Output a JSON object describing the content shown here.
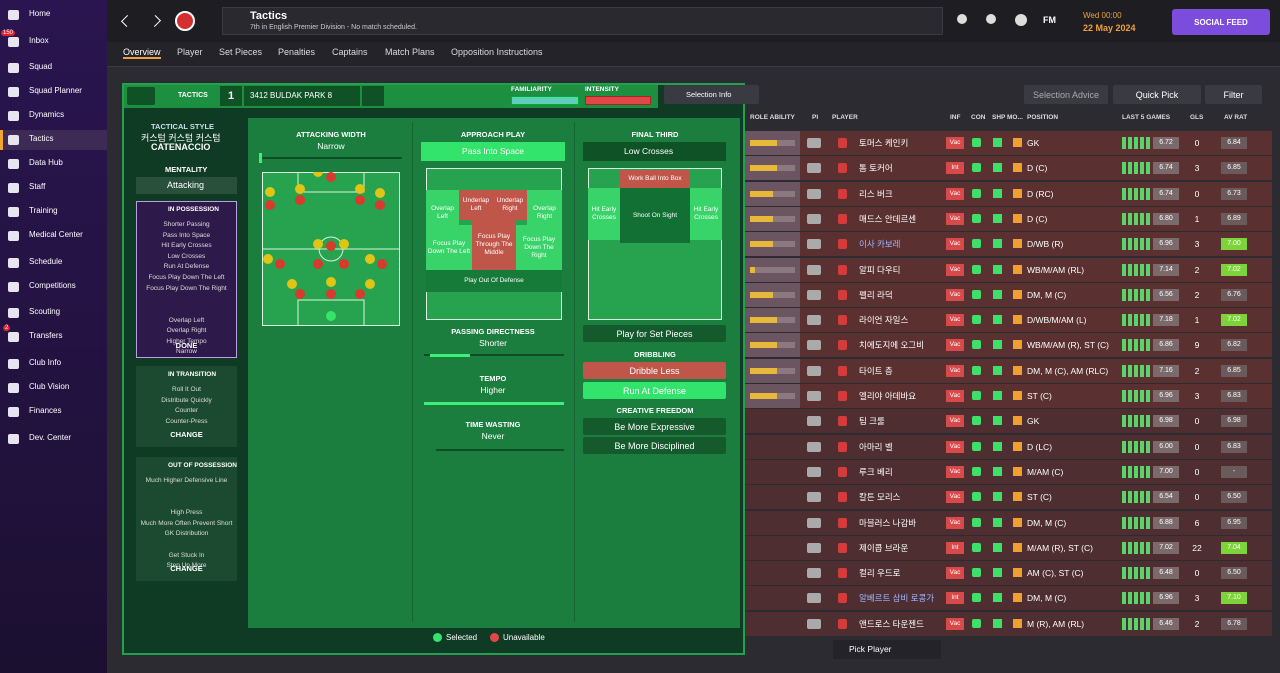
{
  "sidebar": {
    "items": [
      "Home",
      "Inbox",
      "Squad",
      "Squad Planner",
      "Dynamics",
      "Tactics",
      "Data Hub",
      "Staff",
      "Training",
      "Medical Center",
      "Schedule",
      "Competitions",
      "Scouting",
      "Transfers",
      "Club Info",
      "Club Vision",
      "Finances",
      "Dev. Center"
    ],
    "inbox_badge": "150",
    "transfers_badge": "2"
  },
  "header": {
    "title": "Tactics",
    "subtitle": "7th in English Premier Division - No match scheduled.",
    "fm": "FM",
    "day_time": "Wed 00:00",
    "date": "22 May 2024",
    "social_feed": "SOCIAL FEED"
  },
  "tabs": [
    "Overview",
    "Player",
    "Set Pieces",
    "Penalties",
    "Captains",
    "Match Plans",
    "Opposition Instructions"
  ],
  "tactic_bar": {
    "label": "TACTICS",
    "slot": "1",
    "name": "3412 BULDAK PARK 8",
    "familiarity": "FAMILIARITY",
    "intensity": "INTENSITY",
    "selection_info": "Selection Info"
  },
  "style_panel": {
    "heading": "TACTICAL STYLE",
    "custom": "커스텀 커스텀 커스텀",
    "style": "CATENACCIO",
    "mentality_label": "MENTALITY",
    "mentality": "Attacking",
    "in_possession": {
      "title": "IN POSSESSION",
      "items": [
        "Shorter Passing",
        "Pass Into Space",
        "Hit Early Crosses",
        "Low Crosses",
        "Run At Defense",
        "Focus Play Down The Left",
        "Focus Play Down The Right",
        "Overlap Left",
        "Overlap Right",
        "Higher Tempo",
        "Narrow"
      ],
      "button": "DONE"
    },
    "in_transition": {
      "title": "IN TRANSITION",
      "items": [
        "Roll It Out",
        "Distribute Quickly",
        "Counter",
        "Counter-Press"
      ],
      "button": "CHANGE"
    },
    "out_of_possession": {
      "title": "OUT OF POSSESSION",
      "items": [
        "Much Higher Defensive Line",
        "High Press",
        "Much More Often Prevent Short GK Distribution",
        "Get Stuck In",
        "Step Up More"
      ],
      "button": "CHANGE"
    }
  },
  "instructions": {
    "attacking_width": {
      "title": "ATTACKING WIDTH",
      "value": "Narrow"
    },
    "approach_play": {
      "title": "APPROACH PLAY",
      "value": "Pass Into Space",
      "zones": [
        "Overlap Left",
        "Underlap Left",
        "Underlap Right",
        "Overlap Right",
        "Focus Play Down The Left",
        "Focus Play Through The Middle",
        "Focus Play Down The Right",
        "Play Out Of Defense"
      ]
    },
    "passing_directness": {
      "title": "PASSING DIRECTNESS",
      "value": "Shorter"
    },
    "tempo": {
      "title": "TEMPO",
      "value": "Higher"
    },
    "time_wasting": {
      "title": "TIME WASTING",
      "value": "Never"
    },
    "final_third": {
      "title": "FINAL THIRD",
      "value": "Low Crosses",
      "zones": [
        "Work Ball Into Box",
        "Hit Early Crosses",
        "Shoot On Sight",
        "Hit Early Crosses"
      ]
    },
    "set_pieces": "Play for Set Pieces",
    "dribbling": {
      "title": "DRIBBLING",
      "options": [
        "Dribble Less",
        "Run At Defense"
      ]
    },
    "creative_freedom": {
      "title": "CREATIVE FREEDOM",
      "options": [
        "Be More Expressive",
        "Be More Disciplined"
      ]
    }
  },
  "legend": {
    "selected": "Selected",
    "unavailable": "Unavailable"
  },
  "squad": {
    "buttons": [
      "Selection Advice",
      "Quick Pick",
      "Filter"
    ],
    "columns": [
      "ROLE ABILITY",
      "PI",
      "PLAYER",
      "INF",
      "CON",
      "SHP",
      "MO...",
      "POSITION",
      "LAST 5 GAMES",
      "GLS",
      "AV RAT"
    ],
    "rows": [
      {
        "stars": 3,
        "name": "토머스 케인키",
        "inf": "Vac",
        "position": "GK",
        "last5": "6.72",
        "gls": "0",
        "av_rat": "6.84"
      },
      {
        "stars": 3,
        "name": "톰 토커어",
        "inf": "Int",
        "position": "D (C)",
        "last5": "6.74",
        "gls": "3",
        "av_rat": "6.85"
      },
      {
        "stars": 2.5,
        "name": "리스 버크",
        "inf": "Vac",
        "position": "D (RC)",
        "last5": "6.74",
        "gls": "0",
        "av_rat": "6.73"
      },
      {
        "stars": 2.5,
        "name": "매드스 안데르센",
        "inf": "Vac",
        "position": "D (C)",
        "last5": "6.80",
        "gls": "1",
        "av_rat": "6.89"
      },
      {
        "stars": 2.5,
        "name": "이사 카보레",
        "inf": "Vac",
        "position": "D/WB (R)",
        "last5": "6.96",
        "gls": "3",
        "av_rat": "7.00"
      },
      {
        "stars": 0.5,
        "name": "알피 다우티",
        "inf": "Vac",
        "position": "WB/M/AM (RL)",
        "last5": "7.14",
        "gls": "2",
        "av_rat": "7.02"
      },
      {
        "stars": 2.5,
        "name": "펠리 라덕",
        "inf": "Vac",
        "position": "DM, M (C)",
        "last5": "6.56",
        "gls": "2",
        "av_rat": "6.76"
      },
      {
        "stars": 3,
        "name": "라이언 자일스",
        "inf": "Vac",
        "position": "D/WB/M/AM (L)",
        "last5": "7.18",
        "gls": "1",
        "av_rat": "7.02"
      },
      {
        "stars": 3,
        "name": "치에도지에 오그비",
        "inf": "Vac",
        "position": "WB/M/AM (R), ST (C)",
        "last5": "6.86",
        "gls": "9",
        "av_rat": "6.82"
      },
      {
        "stars": 3,
        "name": "타이트 층",
        "inf": "Vac",
        "position": "DM, M (C), AM (RLC)",
        "last5": "7.16",
        "gls": "2",
        "av_rat": "6.85"
      },
      {
        "stars": 3,
        "name": "엘리야 아데바요",
        "inf": "Vac",
        "position": "ST (C)",
        "last5": "6.96",
        "gls": "3",
        "av_rat": "6.83"
      },
      {
        "name": "팀 크룰",
        "inf": "Vac",
        "position": "GK",
        "last5": "6.98",
        "gls": "0",
        "av_rat": "6.98"
      },
      {
        "name": "아마리 벨",
        "inf": "Vac",
        "position": "D (LC)",
        "last5": "6.00",
        "gls": "0",
        "av_rat": "6.83"
      },
      {
        "name": "루크 베리",
        "inf": "Vac",
        "position": "M/AM (C)",
        "last5": "7.00",
        "gls": "0",
        "av_rat": "-"
      },
      {
        "name": "칼튼 모리스",
        "inf": "Vac",
        "position": "ST (C)",
        "last5": "6.54",
        "gls": "0",
        "av_rat": "6.50"
      },
      {
        "name": "마블러스 나감바",
        "inf": "Vac",
        "position": "DM, M (C)",
        "last5": "6.88",
        "gls": "6",
        "av_rat": "6.95"
      },
      {
        "name": "제이콥 브라운",
        "inf": "Int",
        "position": "M/AM (R), ST (C)",
        "last5": "7.02",
        "gls": "22",
        "av_rat": "7.04"
      },
      {
        "name": "컬리 우드로",
        "inf": "Vac",
        "position": "AM (C), ST (C)",
        "last5": "6.48",
        "gls": "0",
        "av_rat": "6.50"
      },
      {
        "name": "알베르트 삼비 로콩가",
        "inf": "Int",
        "position": "DM, M (C)",
        "last5": "6.96",
        "gls": "3",
        "av_rat": "7.10"
      },
      {
        "name": "앤드로스 타운젠드",
        "inf": "Vac",
        "position": "M (R), AM (RL)",
        "last5": "6.46",
        "gls": "2",
        "av_rat": "6.78"
      }
    ],
    "pick_player": "Pick Player"
  }
}
